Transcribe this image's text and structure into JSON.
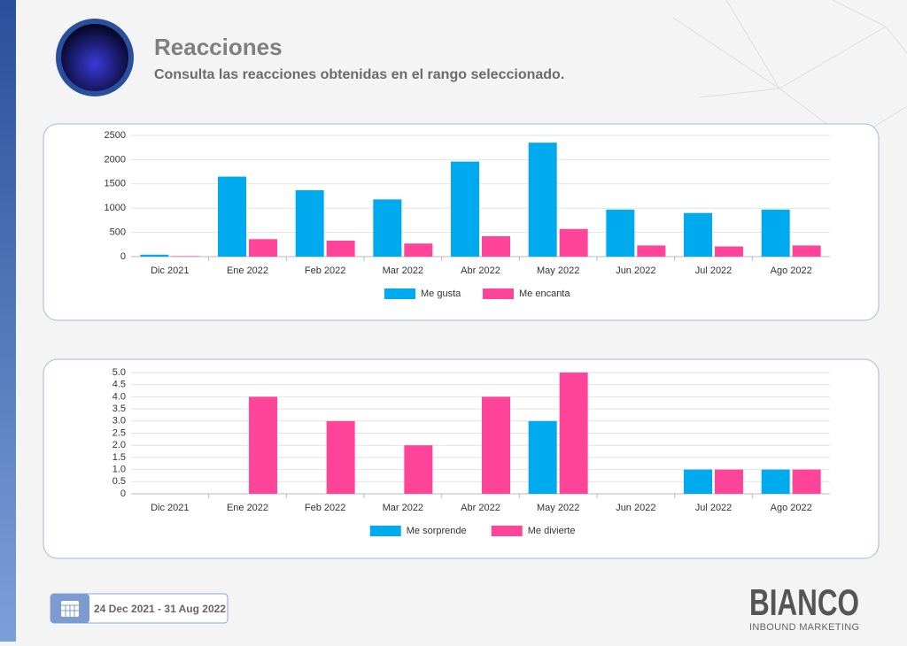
{
  "header": {
    "title": "Reacciones",
    "subtitle": "Consulta las reacciones obtenidas en el rango seleccionado."
  },
  "chart_data": [
    {
      "type": "bar",
      "categories": [
        "Dic 2021",
        "Ene 2022",
        "Feb 2022",
        "Mar 2022",
        "Abr 2022",
        "May 2022",
        "Jun 2022",
        "Jul 2022",
        "Ago 2022"
      ],
      "series": [
        {
          "name": "Me gusta",
          "color": "#00aaee",
          "values": [
            40,
            1650,
            1370,
            1180,
            1960,
            2350,
            970,
            900,
            970
          ]
        },
        {
          "name": "Me encanta",
          "color": "#ff4499",
          "values": [
            10,
            360,
            330,
            270,
            420,
            570,
            230,
            210,
            230
          ]
        }
      ],
      "ylim": [
        0,
        2500
      ],
      "yticks": [
        0,
        500,
        1000,
        1500,
        2000,
        2500
      ],
      "grid": true,
      "legend": "bottom"
    },
    {
      "type": "bar",
      "categories": [
        "Dic 2021",
        "Ene 2022",
        "Feb 2022",
        "Mar 2022",
        "Abr 2022",
        "May 2022",
        "Jun 2022",
        "Jul 2022",
        "Ago 2022"
      ],
      "series": [
        {
          "name": "Me sorprende",
          "color": "#00aaee",
          "values": [
            0,
            0,
            0,
            0,
            0,
            3,
            0,
            1,
            1
          ]
        },
        {
          "name": "Me divierte",
          "color": "#ff4499",
          "values": [
            0,
            4,
            3,
            2,
            4,
            5,
            0,
            1,
            1
          ]
        }
      ],
      "ylim": [
        0,
        5
      ],
      "yticks": [
        0,
        0.5,
        {
          "value": 1,
          "label": "1.0"
        },
        1.5,
        {
          "value": 2,
          "label": "2.0"
        },
        2.5,
        {
          "value": 3,
          "label": "3.0"
        },
        3.5,
        {
          "value": 4,
          "label": "4.0"
        },
        4.5,
        {
          "value": 5,
          "label": "5.0"
        }
      ],
      "grid": true,
      "legend": "bottom"
    }
  ],
  "footer": {
    "date_range": "24 Dec 2021 - 31 Aug 2022",
    "brand": "BIANCO",
    "brand_sub": "INBOUND MARKETING"
  }
}
